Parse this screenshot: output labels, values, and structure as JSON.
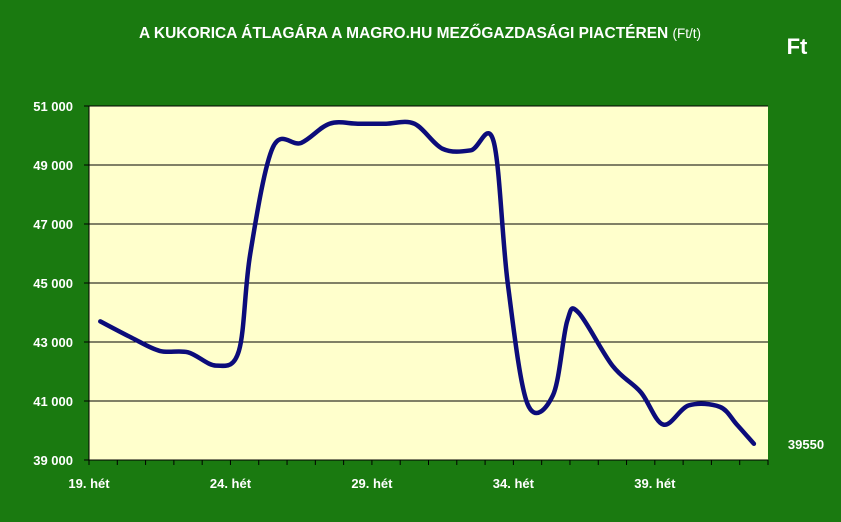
{
  "colors": {
    "background": "#1a7a10",
    "plot_background": "#ffffcc",
    "line": "#0c0c7a",
    "text": "#ffffff",
    "grid": "#000000"
  },
  "chart_data": {
    "type": "line",
    "title": "A KUKORICA ÁTLAGÁRA A MAGRO.HU MEZŐGAZDASÁGI PIACTÉREN",
    "title_unit": "(Ft/t)",
    "ylabel": "Ft",
    "ylim": [
      39000,
      51000
    ],
    "yticks": [
      39000,
      41000,
      43000,
      45000,
      47000,
      49000,
      51000
    ],
    "ytick_labels": [
      "39 000",
      "41 000",
      "43 000",
      "45 000",
      "47 000",
      "49 000",
      "51 000"
    ],
    "xlim": [
      19,
      43
    ],
    "xticks": [
      19,
      24,
      29,
      34,
      39
    ],
    "xtick_labels": [
      "19. hét",
      "24. hét",
      "29. hét",
      "34. hét",
      "39. hét"
    ],
    "grid": true,
    "last_value_label": "39550",
    "series": [
      {
        "x": [
          19.4,
          20.5,
          21.5,
          22.5,
          23.5,
          24.3,
          24.7,
          25.5,
          26.5,
          27.5,
          28.5,
          29.5,
          30.5,
          31.5,
          32.5,
          33.3,
          33.8,
          34.5,
          35.4,
          35.9,
          36.3,
          37.5,
          38.5,
          39.3,
          40.2,
          41.3,
          41.9,
          42.5
        ],
        "values": [
          43700,
          43150,
          42700,
          42650,
          42200,
          42700,
          46000,
          49600,
          49750,
          50400,
          50400,
          50400,
          50400,
          49550,
          49500,
          49800,
          45000,
          40900,
          41200,
          43700,
          44000,
          42200,
          41300,
          40200,
          40850,
          40800,
          40200,
          39550
        ]
      }
    ]
  }
}
